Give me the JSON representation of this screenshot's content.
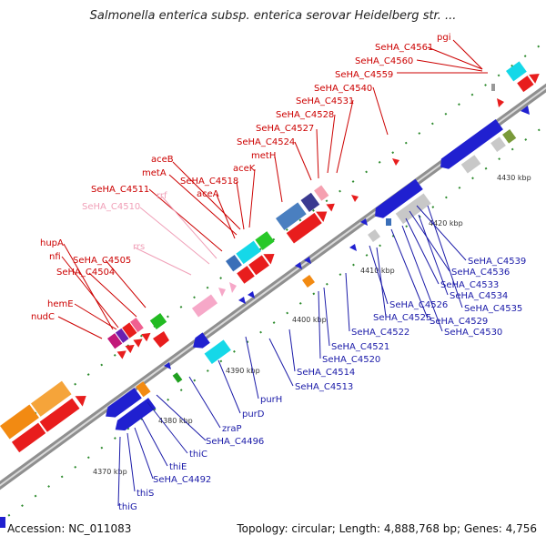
{
  "title": "Salmonella enterica subsp. enterica serovar Heidelberg str. ...",
  "footer": {
    "accession": "Accession: NC_011083",
    "info": "Topology: circular; Length: 4,888,768 bp; Genes: 4,756"
  },
  "colors": {
    "red_label": "#cc0000",
    "blue_label": "#1a1aa8",
    "pink_label": "#f0a0b8",
    "backbone": "#9a9a9a"
  },
  "scale_ticks": [
    "4370 kbp",
    "4380 kbp",
    "4390 kbp",
    "4400 kbp",
    "4410 kbp",
    "4420 kbp",
    "4430 kbp"
  ],
  "top_labels": [
    {
      "text": "pgi",
      "color": "red"
    },
    {
      "text": "SeHA_C4561",
      "color": "red"
    },
    {
      "text": "SeHA_C4560",
      "color": "red"
    },
    {
      "text": "SeHA_C4559",
      "color": "red"
    },
    {
      "text": "SeHA_C4540",
      "color": "red"
    },
    {
      "text": "SeHA_C4531",
      "color": "red"
    },
    {
      "text": "SeHA_C4528",
      "color": "red"
    },
    {
      "text": "SeHA_C4527",
      "color": "red"
    },
    {
      "text": "SeHA_C4524",
      "color": "red"
    },
    {
      "text": "metH",
      "color": "red"
    },
    {
      "text": "aceK",
      "color": "red"
    },
    {
      "text": "aceB",
      "color": "red"
    },
    {
      "text": "SeHA_C4518",
      "color": "red"
    },
    {
      "text": "metA",
      "color": "red"
    },
    {
      "text": "aceA",
      "color": "red"
    },
    {
      "text": "SeHA_C4511",
      "color": "red"
    },
    {
      "text": "rrf",
      "color": "pink"
    },
    {
      "text": "SeHA_C4510",
      "color": "pink"
    },
    {
      "text": "rrs",
      "color": "pink"
    },
    {
      "text": "hupA",
      "color": "red"
    },
    {
      "text": "nfi",
      "color": "red"
    },
    {
      "text": "SeHA_C4505",
      "color": "red"
    },
    {
      "text": "SeHA_C4504",
      "color": "red"
    },
    {
      "text": "hemE",
      "color": "red"
    },
    {
      "text": "nudC",
      "color": "red"
    }
  ],
  "bottom_labels": [
    {
      "text": "SeHA_C4539"
    },
    {
      "text": "SeHA_C4536"
    },
    {
      "text": "SeHA_C4533"
    },
    {
      "text": "SeHA_C4534"
    },
    {
      "text": "SeHA_C4535"
    },
    {
      "text": "SeHA_C4526"
    },
    {
      "text": "SeHA_C4525"
    },
    {
      "text": "SeHA_C4529"
    },
    {
      "text": "SeHA_C4530"
    },
    {
      "text": "SeHA_C4522"
    },
    {
      "text": "SeHA_C4521"
    },
    {
      "text": "SeHA_C4520"
    },
    {
      "text": "SeHA_C4514"
    },
    {
      "text": "SeHA_C4513"
    },
    {
      "text": "purH"
    },
    {
      "text": "purD"
    },
    {
      "text": "zraP"
    },
    {
      "text": "SeHA_C4496"
    },
    {
      "text": "thiC"
    },
    {
      "text": "thiE"
    },
    {
      "text": "SeHA_C4492"
    },
    {
      "text": "thiS"
    },
    {
      "text": "thiG"
    }
  ]
}
